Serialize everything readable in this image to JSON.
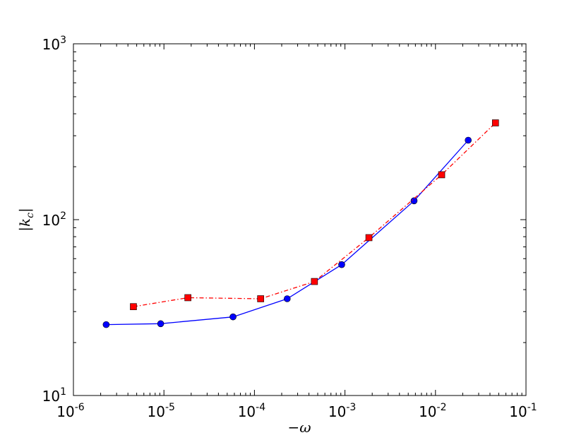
{
  "chart_data": {
    "type": "line",
    "xscale": "log",
    "yscale": "log",
    "xlim": [
      1e-06,
      0.1
    ],
    "ylim": [
      10,
      1000
    ],
    "grid": false,
    "xlabel": "−ω",
    "ylabel": "|k_c|",
    "x_tick_labels": [
      {
        "base": "10",
        "exp": "-6"
      },
      {
        "base": "10",
        "exp": "-5"
      },
      {
        "base": "10",
        "exp": "-4"
      },
      {
        "base": "10",
        "exp": "-3"
      },
      {
        "base": "10",
        "exp": "-2"
      },
      {
        "base": "10",
        "exp": "-1"
      }
    ],
    "y_tick_labels": [
      {
        "base": "10",
        "exp": "1"
      },
      {
        "base": "10",
        "exp": "2"
      },
      {
        "base": "10",
        "exp": "3"
      }
    ],
    "series": [
      {
        "color": "#0000ff",
        "line_style": "solid",
        "marker": "circle",
        "x": [
          2.3e-06,
          9.2e-06,
          5.8e-05,
          0.00023,
          0.00092,
          0.0058,
          0.023
        ],
        "y": [
          25.3,
          25.6,
          28.0,
          35.5,
          55.5,
          128,
          283
        ]
      },
      {
        "color": "#ff0000",
        "line_style": "dash-dot",
        "marker": "square",
        "x": [
          4.6e-06,
          1.84e-05,
          0.000117,
          0.00046,
          0.00184,
          0.0117,
          0.046
        ],
        "y": [
          32.0,
          36.0,
          35.5,
          44.5,
          79,
          180,
          355
        ]
      }
    ]
  }
}
